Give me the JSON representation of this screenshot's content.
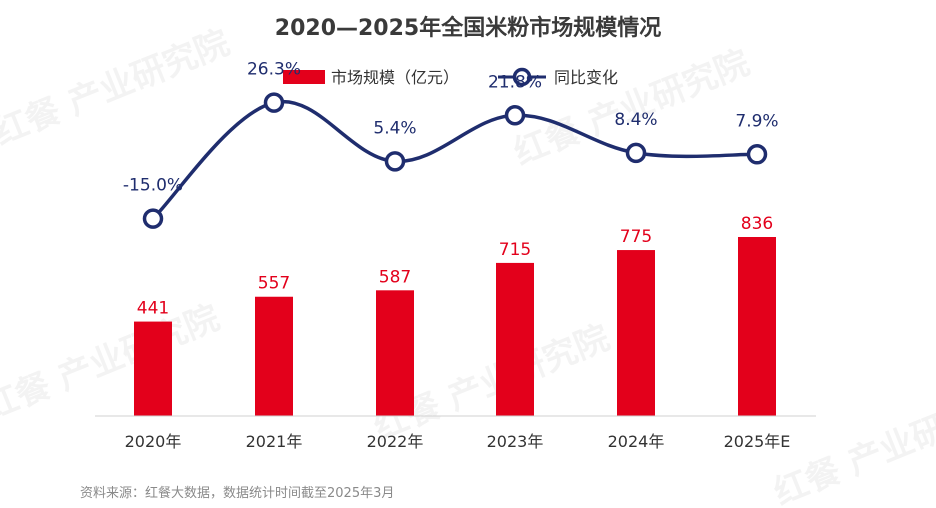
{
  "chart_data": {
    "type": "bar",
    "title": "2020—2025年全国米粉市场规模情况",
    "categories": [
      "2020年",
      "2021年",
      "2022年",
      "2023年",
      "2024年",
      "2025年E"
    ],
    "series": [
      {
        "name": "市场规模（亿元）",
        "type": "bar",
        "values": [
          441,
          557,
          587,
          715,
          775,
          836
        ],
        "color": "#e3001b"
      },
      {
        "name": "同比变化",
        "type": "line",
        "values": [
          -15.0,
          26.3,
          5.4,
          21.8,
          8.4,
          7.9
        ],
        "labels": [
          "-15.0%",
          "26.3%",
          "5.4%",
          "21.8%",
          "8.4%",
          "7.9%"
        ],
        "color": "#1f2d6e"
      }
    ],
    "legend_position": "top-center",
    "grid": false
  },
  "watermark": "红餐 产业研究院",
  "source": "资料来源：红餐大数据，数据统计时间截至2025年3月"
}
